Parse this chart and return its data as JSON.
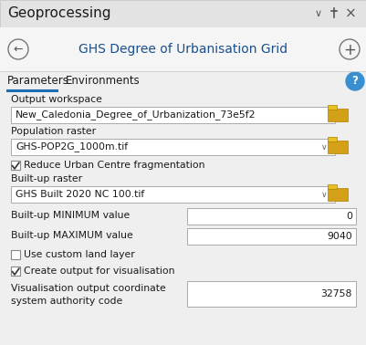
{
  "bg_color": "#ebebeb",
  "title_bar_bg": "#e3e3e3",
  "header_bg": "#f5f5f5",
  "content_bg": "#efefef",
  "title_bar_text": "Geoprocessing",
  "title_bar_fontsize": 11,
  "header_text": "GHS Degree of Urbanisation Grid",
  "header_fontsize": 10,
  "tab_active": "Parameters",
  "tab_inactive": "Environments",
  "tab_fontsize": 8.5,
  "tab_underline_color": "#1c6eb4",
  "help_circle_color": "#3a9de0",
  "input_bg": "#ffffff",
  "input_border": "#aaaaaa",
  "text_color": "#1a1a1a",
  "label_color": "#1a1a1a",
  "folder_color": "#d4a017",
  "folder_dark": "#b08000",
  "titlebar_icon_color": "#555555",
  "fields": [
    {
      "label": "Output workspace",
      "value": "New_Caledonia_Degree_of_Urbanization_73e5f2",
      "type": "fullwidth",
      "folder": true,
      "dropdown": false
    },
    {
      "label": "Population raster",
      "value": "GHS-POP2G_1000m.tif",
      "type": "fullwidth",
      "folder": true,
      "dropdown": true
    },
    {
      "label": "Reduce Urban Centre fragmentation",
      "value": "",
      "type": "checkbox_checked",
      "folder": false,
      "dropdown": false
    },
    {
      "label": "Built-up raster",
      "value": "GHS Built 2020 NC 100.tif",
      "type": "fullwidth",
      "folder": true,
      "dropdown": true
    },
    {
      "label": "Built-up MINIMUM value",
      "value": "0",
      "type": "halfright",
      "folder": false,
      "dropdown": false
    },
    {
      "label": "Built-up MAXIMUM value",
      "value": "9040",
      "type": "halfright",
      "folder": false,
      "dropdown": false
    },
    {
      "label": "Use custom land layer",
      "value": "",
      "type": "checkbox_unchecked",
      "folder": false,
      "dropdown": false
    },
    {
      "label": "Create output for visualisation",
      "value": "",
      "type": "checkbox_checked",
      "folder": false,
      "dropdown": false
    },
    {
      "label": "Visualisation output coordinate\nsystem authority code",
      "value": "32758",
      "type": "halfright_tall",
      "folder": false,
      "dropdown": false
    }
  ]
}
